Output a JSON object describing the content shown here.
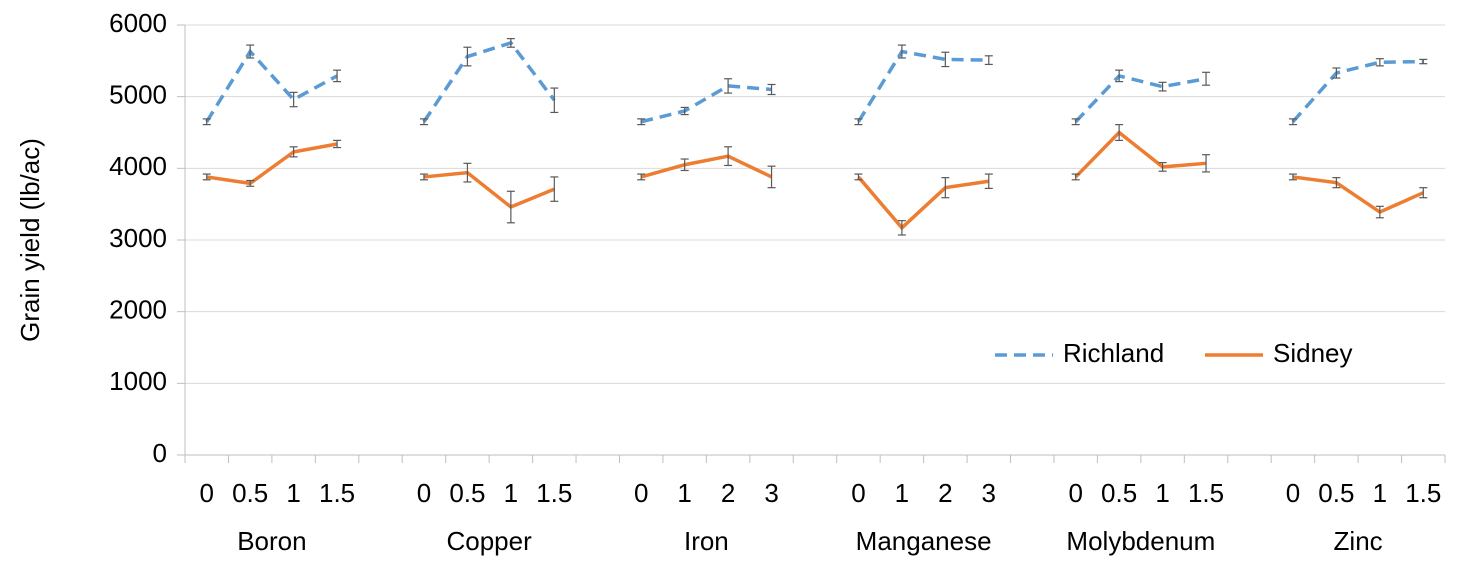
{
  "chart_data": {
    "type": "line",
    "y_label": "Grain yield (lb/ac)",
    "categories": [
      "0",
      "0.5",
      "1",
      "1.5",
      null,
      "0",
      "0.5",
      "1",
      "1.5",
      null,
      "0",
      "1",
      "2",
      "3",
      null,
      "0",
      "1",
      "2",
      "3",
      null,
      "0",
      "0.5",
      "1",
      "1.5",
      null,
      "0",
      "0.5",
      "1",
      "1.5"
    ],
    "groups": [
      "Boron",
      "Copper",
      "Iron",
      "Manganese",
      "Molybdenum",
      "Zinc"
    ],
    "series": [
      {
        "name": "Richland",
        "color": "#5b9bd5",
        "dashed": true,
        "values": [
          4650,
          5630,
          4960,
          5290,
          null,
          4650,
          5560,
          5750,
          4950,
          null,
          4650,
          4800,
          5150,
          5100,
          null,
          4650,
          5630,
          5520,
          5510,
          null,
          4650,
          5290,
          5140,
          5250,
          null,
          4650,
          5330,
          5480,
          5490
        ],
        "errors": [
          40,
          90,
          100,
          80,
          null,
          40,
          130,
          60,
          170,
          null,
          40,
          50,
          100,
          70,
          null,
          40,
          90,
          100,
          60,
          null,
          40,
          80,
          60,
          90,
          null,
          40,
          70,
          50,
          30
        ]
      },
      {
        "name": "Sidney",
        "color": "#ed7d31",
        "dashed": false,
        "values": [
          3880,
          3790,
          4230,
          4340,
          null,
          3880,
          3940,
          3460,
          3710,
          null,
          3880,
          4050,
          4170,
          3880,
          null,
          3880,
          3170,
          3730,
          3820,
          null,
          3880,
          4500,
          4020,
          4070,
          null,
          3880,
          3800,
          3390,
          3660
        ],
        "errors": [
          40,
          40,
          70,
          50,
          null,
          40,
          130,
          220,
          170,
          null,
          40,
          80,
          130,
          150,
          null,
          40,
          100,
          140,
          100,
          null,
          40,
          110,
          60,
          120,
          null,
          40,
          70,
          80,
          70
        ]
      }
    ],
    "ylim": [
      0,
      6000
    ],
    "yticks": [
      0,
      1000,
      2000,
      3000,
      4000,
      5000,
      6000
    ],
    "grid": true,
    "legend": "lower-right"
  }
}
